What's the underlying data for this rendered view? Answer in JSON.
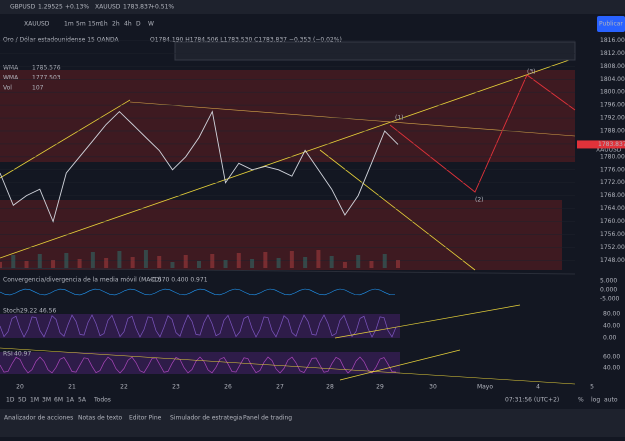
{
  "tabs": [
    {
      "symbol": "GBPUSD",
      "price": "1.29525",
      "change": "+0.13%"
    },
    {
      "symbol": "XAUUSD",
      "price": "1783.837",
      "change": "+0.51%"
    }
  ],
  "toolbar": {
    "symbol": "XAUUSD",
    "intervals": [
      "1m",
      "5m",
      "15m",
      "1h",
      "2h",
      "4h",
      "D",
      "W"
    ],
    "publish": "Publicar"
  },
  "legend": {
    "title": "Oro / Dólar estadounidense  15  OANDA",
    "ohlc": "O1784.190 H1784.506 L1783.530 C1783.837 −0.353 (−0.02%)",
    "indicators": [
      {
        "name": "WMA",
        "value": "1785.576"
      },
      {
        "name": "WMA",
        "value": "1777.503"
      },
      {
        "name": "Vol",
        "value": "107"
      }
    ]
  },
  "price_pane": {
    "symbol": "XAUUSD",
    "last": "1783.837",
    "ylim": [
      1745,
      1818
    ],
    "yticks": [
      {
        "value": 1816,
        "label": "1816.000"
      },
      {
        "value": 1812,
        "label": "1812.000"
      },
      {
        "value": 1808,
        "label": "1808.000"
      },
      {
        "value": 1804,
        "label": "1804.000"
      },
      {
        "value": 1800,
        "label": "1800.000"
      },
      {
        "value": 1796,
        "label": "1796.000"
      },
      {
        "value": 1792,
        "label": "1792.000"
      },
      {
        "value": 1788,
        "label": "1788.000"
      },
      {
        "value": 1784,
        "label": "1784.000"
      },
      {
        "value": 1780,
        "label": "1780.000"
      },
      {
        "value": 1776,
        "label": "1776.000"
      },
      {
        "value": 1772,
        "label": "1772.000"
      },
      {
        "value": 1768,
        "label": "1768.000"
      },
      {
        "value": 1764,
        "label": "1764.000"
      },
      {
        "value": 1760,
        "label": "1760.000"
      },
      {
        "value": 1756,
        "label": "1756.000"
      },
      {
        "value": 1752,
        "label": "1752.000"
      },
      {
        "value": 1748,
        "label": "1748.000"
      }
    ],
    "closes": [
      1775,
      1765,
      1768,
      1770,
      1760,
      1775,
      1780,
      1785,
      1790,
      1794,
      1790,
      1786,
      1782,
      1776,
      1780,
      1786,
      1794,
      1772,
      1778,
      1776,
      1777,
      1776,
      1774,
      1782,
      1776,
      1770,
      1762,
      1768,
      1778,
      1788,
      1783.837
    ],
    "wave_labels": [
      "(1)",
      "(2)",
      "(3)"
    ]
  },
  "macd": {
    "label": "Convergencia/divergencia de la media móvil (MACD)",
    "values": "-0.570  0.400  0.971",
    "ticks": [
      "5.000",
      "0.000",
      "-5.000"
    ]
  },
  "stoch": {
    "label": "Stoch",
    "values": "29.22  46.56",
    "ticks": [
      "80.00",
      "40.00",
      "0.00"
    ]
  },
  "rsi": {
    "label": "RSI",
    "values": "40.97",
    "ticks": [
      "60.00",
      "40.00"
    ]
  },
  "x_axis": [
    "20",
    "21",
    "22",
    "23",
    "26",
    "27",
    "28",
    "29",
    "30",
    "Mayo",
    "4",
    "5"
  ],
  "ranges": [
    "1D",
    "5D",
    "1M",
    "3M",
    "6M",
    "1A",
    "5A",
    "Todos"
  ],
  "status": {
    "time": "07:31:56 (UTC+2)",
    "options": [
      "%",
      "log",
      "auto"
    ]
  },
  "bottom_tabs": [
    "Analizador de acciones",
    "Notas de texto",
    "Editor Pine",
    "Simulador de estrategia",
    "Panel de trading"
  ]
}
